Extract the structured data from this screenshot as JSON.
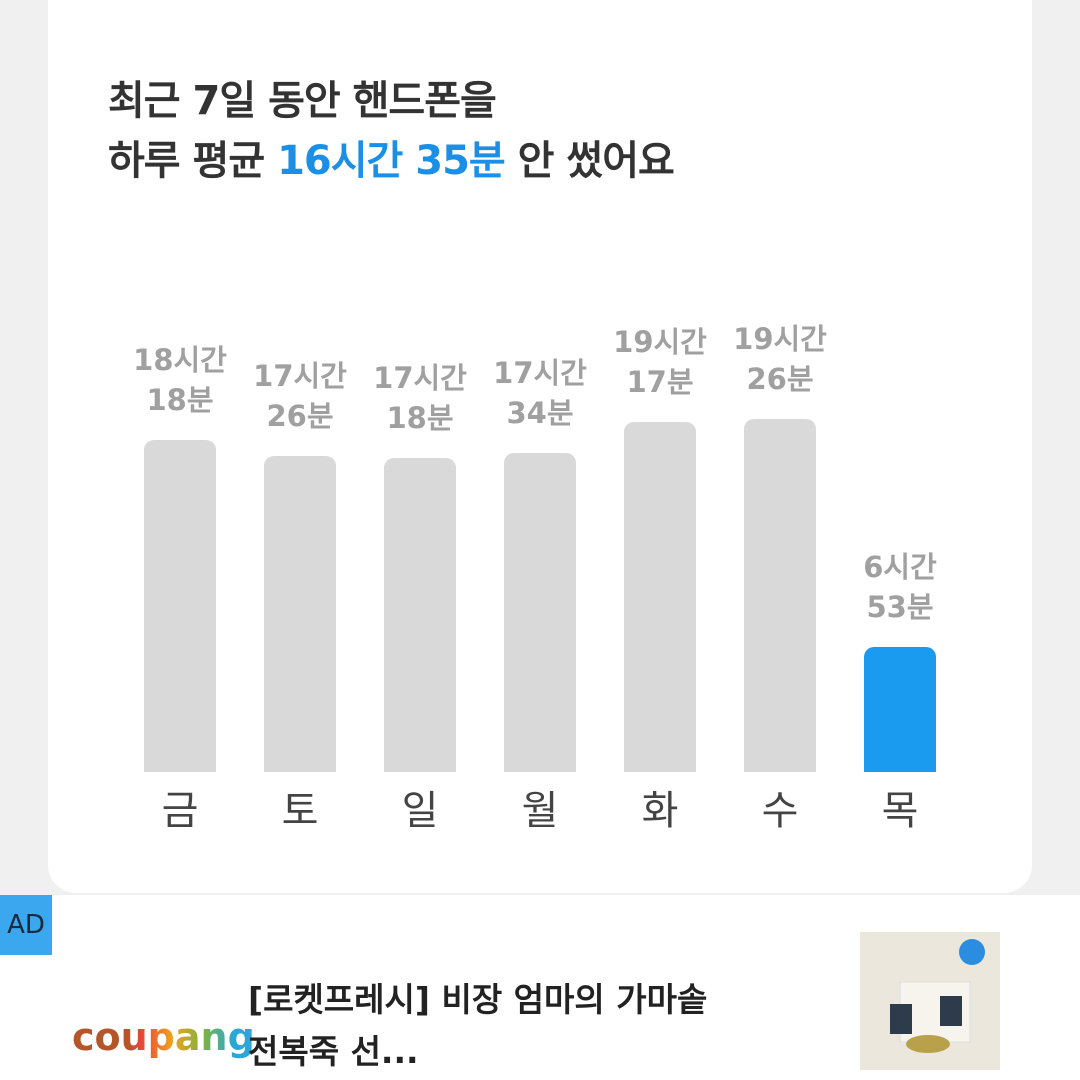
{
  "chart_data": {
    "type": "bar",
    "title": "최근 7일 동안 핸드폰을",
    "subtitle_before": "하루 평균",
    "subtitle_highlight": "16시간 35분",
    "subtitle_after": "안 썼어요",
    "categories": [
      "금",
      "토",
      "일",
      "월",
      "화",
      "수",
      "목"
    ],
    "values": [
      1098,
      1046,
      1038,
      1054,
      1157,
      1166,
      413
    ],
    "value_labels": [
      "18시간\n18분",
      "17시간\n26분",
      "17시간\n18분",
      "17시간\n34분",
      "19시간\n17분",
      "19시간\n26분",
      "6시간\n53분"
    ],
    "colors": [
      "#d9d9d9",
      "#d9d9d9",
      "#d9d9d9",
      "#d9d9d9",
      "#d9d9d9",
      "#d9d9d9",
      "#1a9bf0"
    ],
    "highlight_color": "#1b8fe6"
  },
  "ad": {
    "badge": "AD",
    "brand": "coupang",
    "headline": "[로켓프레시] 비장 엄마의 가마솥",
    "headline2": "전복죽 선..."
  }
}
